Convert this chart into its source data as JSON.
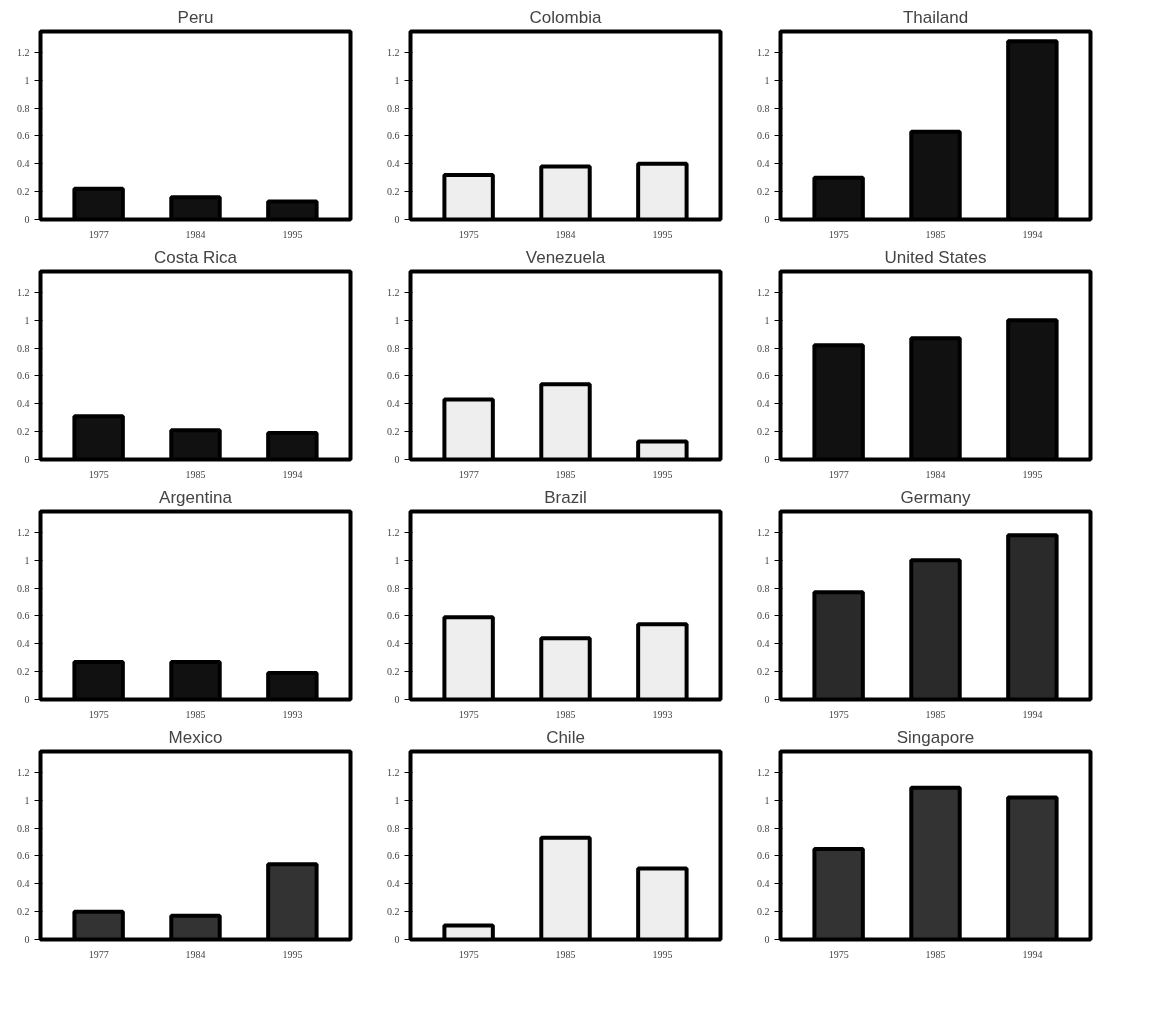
{
  "chart_data": [
    {
      "type": "bar",
      "title": "Peru",
      "categories": [
        "1977",
        "1984",
        "1995"
      ],
      "values": [
        0.22,
        0.16,
        0.13
      ],
      "color": "#111111",
      "ylim": [
        0,
        1.35
      ],
      "yticks": [
        0,
        0.2,
        0.4,
        0.6,
        0.8,
        1,
        1.2
      ],
      "grid": false
    },
    {
      "type": "bar",
      "title": "Colombia",
      "categories": [
        "1975",
        "1984",
        "1995"
      ],
      "values": [
        0.32,
        0.38,
        0.4
      ],
      "color": "#eeeeee",
      "ylim": [
        0,
        1.35
      ],
      "yticks": [
        0,
        0.2,
        0.4,
        0.6,
        0.8,
        1,
        1.2
      ],
      "grid": false
    },
    {
      "type": "bar",
      "title": "Thailand",
      "categories": [
        "1975",
        "1985",
        "1994"
      ],
      "values": [
        0.3,
        0.63,
        1.28
      ],
      "color": "#111111",
      "ylim": [
        0,
        1.35
      ],
      "yticks": [
        0,
        0.2,
        0.4,
        0.6,
        0.8,
        1,
        1.2
      ],
      "grid": false
    },
    {
      "type": "bar",
      "title": "Costa Rica",
      "categories": [
        "1975",
        "1985",
        "1994"
      ],
      "values": [
        0.31,
        0.21,
        0.19
      ],
      "color": "#111111",
      "ylim": [
        0,
        1.35
      ],
      "yticks": [
        0,
        0.2,
        0.4,
        0.6,
        0.8,
        1,
        1.2
      ],
      "grid": false
    },
    {
      "type": "bar",
      "title": "Venezuela",
      "categories": [
        "1977",
        "1985",
        "1995"
      ],
      "values": [
        0.43,
        0.54,
        0.13
      ],
      "color": "#eeeeee",
      "ylim": [
        0,
        1.35
      ],
      "yticks": [
        0,
        0.2,
        0.4,
        0.6,
        0.8,
        1,
        1.2
      ],
      "grid": false
    },
    {
      "type": "bar",
      "title": "United States",
      "categories": [
        "1977",
        "1984",
        "1995"
      ],
      "values": [
        0.82,
        0.87,
        1.0
      ],
      "color": "#111111",
      "ylim": [
        0,
        1.35
      ],
      "yticks": [
        0,
        0.2,
        0.4,
        0.6,
        0.8,
        1,
        1.2
      ],
      "grid": false
    },
    {
      "type": "bar",
      "title": "Argentina",
      "categories": [
        "1975",
        "1985",
        "1993"
      ],
      "values": [
        0.27,
        0.27,
        0.19
      ],
      "color": "#111111",
      "ylim": [
        0,
        1.35
      ],
      "yticks": [
        0,
        0.2,
        0.4,
        0.6,
        0.8,
        1,
        1.2
      ],
      "grid": false
    },
    {
      "type": "bar",
      "title": "Brazil",
      "categories": [
        "1975",
        "1985",
        "1993"
      ],
      "values": [
        0.59,
        0.44,
        0.54
      ],
      "color": "#eeeeee",
      "ylim": [
        0,
        1.35
      ],
      "yticks": [
        0,
        0.2,
        0.4,
        0.6,
        0.8,
        1,
        1.2
      ],
      "grid": false
    },
    {
      "type": "bar",
      "title": "Germany",
      "categories": [
        "1975",
        "1985",
        "1994"
      ],
      "values": [
        0.77,
        1.0,
        1.18
      ],
      "color": "#2a2a2a",
      "ylim": [
        0,
        1.35
      ],
      "yticks": [
        0,
        0.2,
        0.4,
        0.6,
        0.8,
        1,
        1.2
      ],
      "grid": false
    },
    {
      "type": "bar",
      "title": "Mexico",
      "categories": [
        "1977",
        "1984",
        "1995"
      ],
      "values": [
        0.2,
        0.17,
        0.54
      ],
      "color": "#333333",
      "ylim": [
        0,
        1.35
      ],
      "yticks": [
        0,
        0.2,
        0.4,
        0.6,
        0.8,
        1,
        1.2
      ],
      "grid": false
    },
    {
      "type": "bar",
      "title": "Chile",
      "categories": [
        "1975",
        "1985",
        "1995"
      ],
      "values": [
        0.1,
        0.73,
        0.51
      ],
      "color": "#eeeeee",
      "ylim": [
        0,
        1.35
      ],
      "yticks": [
        0,
        0.2,
        0.4,
        0.6,
        0.8,
        1,
        1.2
      ],
      "grid": false
    },
    {
      "type": "bar",
      "title": "Singapore",
      "categories": [
        "1975",
        "1985",
        "1994"
      ],
      "values": [
        0.65,
        1.09,
        1.02
      ],
      "color": "#333333",
      "ylim": [
        0,
        1.35
      ],
      "yticks": [
        0,
        0.2,
        0.4,
        0.6,
        0.8,
        1,
        1.2
      ],
      "grid": false
    }
  ]
}
